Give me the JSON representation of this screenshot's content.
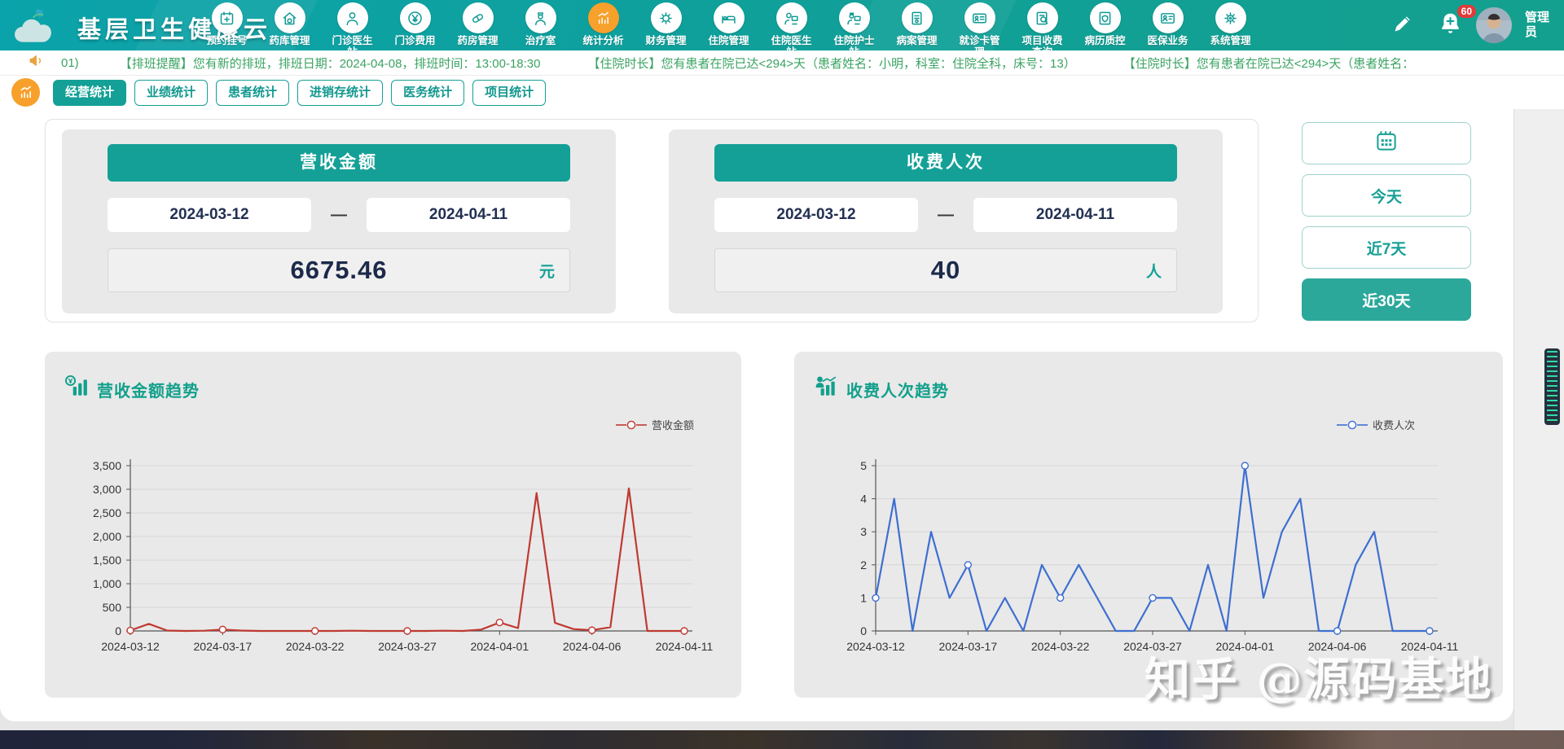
{
  "navbar": {
    "title": "基层卫生健康云",
    "items": [
      {
        "label": "预约挂号",
        "icon": "calendar-plus",
        "active": false
      },
      {
        "label": "药库管理",
        "icon": "pharmacy-house",
        "active": false
      },
      {
        "label": "门诊医生站",
        "icon": "doctor",
        "active": false
      },
      {
        "label": "门诊费用",
        "icon": "yen-coin",
        "active": false
      },
      {
        "label": "药房管理",
        "icon": "capsule",
        "active": false
      },
      {
        "label": "治疗室",
        "icon": "nurse",
        "active": false
      },
      {
        "label": "统计分析",
        "icon": "chart-bars",
        "active": true
      },
      {
        "label": "财务管理",
        "icon": "gear-coin",
        "active": false
      },
      {
        "label": "住院管理",
        "icon": "bed",
        "active": false
      },
      {
        "label": "住院医生站",
        "icon": "doctor-desk",
        "active": false
      },
      {
        "label": "住院护士站",
        "icon": "nurse-desk",
        "active": false
      },
      {
        "label": "病案管理",
        "icon": "document",
        "active": false
      },
      {
        "label": "就诊卡管理",
        "icon": "id-card",
        "active": false
      },
      {
        "label": "项目收费查询",
        "icon": "doc-search",
        "active": false
      },
      {
        "label": "病历质控",
        "icon": "doc-shield",
        "active": false
      },
      {
        "label": "医保业务",
        "icon": "insurance-card",
        "active": false
      },
      {
        "label": "系统管理",
        "icon": "gear",
        "active": false
      }
    ],
    "notification_count": "60",
    "user_name": "管理员"
  },
  "ticker": {
    "index": "01)",
    "messages": [
      "【排班提醒】您有新的排班，排班日期：2024-04-08，排班时间：13:00-18:30",
      "【住院时长】您有患者在院已达<294>天（患者姓名：小明，科室：住院全科，床号：13）",
      "【住院时长】您有患者在院已达<294>天（患者姓名："
    ]
  },
  "tabs": [
    {
      "label": "经营统计",
      "active": true
    },
    {
      "label": "业绩统计",
      "active": false
    },
    {
      "label": "患者统计",
      "active": false
    },
    {
      "label": "进销存统计",
      "active": false
    },
    {
      "label": "医务统计",
      "active": false
    },
    {
      "label": "项目统计",
      "active": false
    }
  ],
  "stat_cards": [
    {
      "title": "营收金额",
      "date_from": "2024-03-12",
      "date_sep": "—",
      "date_to": "2024-04-11",
      "value": "6675.46",
      "unit": "元"
    },
    {
      "title": "收费人次",
      "date_from": "2024-03-12",
      "date_sep": "—",
      "date_to": "2024-04-11",
      "value": "40",
      "unit": "人"
    }
  ],
  "date_filters": {
    "today": "今天",
    "last7": "近7天",
    "last30": "近30天",
    "active": "近30天"
  },
  "watermark": "知乎 @源码基地",
  "colors": {
    "primary_teal": "#14a096",
    "active_orange": "#f7a02b",
    "ticker_green": "#3aa362",
    "revenue_red": "#bf3a32",
    "visits_blue": "#3e6fd1",
    "value_navy": "#1c2a4a"
  },
  "chart_data": [
    {
      "type": "line",
      "title": "营收金额趋势",
      "legend_position": "top-right",
      "grid": true,
      "ylim": [
        0,
        3500
      ],
      "y_ticks": [
        0,
        500,
        1000,
        1500,
        2000,
        2500,
        3000,
        3500
      ],
      "y_tick_labels": [
        "0",
        "500",
        "1,000",
        "1,500",
        "2,000",
        "2,500",
        "3,000",
        "3,500"
      ],
      "x": [
        "2024-03-12",
        "2024-03-13",
        "2024-03-14",
        "2024-03-15",
        "2024-03-16",
        "2024-03-17",
        "2024-03-18",
        "2024-03-19",
        "2024-03-20",
        "2024-03-21",
        "2024-03-22",
        "2024-03-23",
        "2024-03-24",
        "2024-03-25",
        "2024-03-26",
        "2024-03-27",
        "2024-03-28",
        "2024-03-29",
        "2024-03-30",
        "2024-03-31",
        "2024-04-01",
        "2024-04-02",
        "2024-04-03",
        "2024-04-04",
        "2024-04-05",
        "2024-04-06",
        "2024-04-07",
        "2024-04-08",
        "2024-04-09",
        "2024-04-10",
        "2024-04-11"
      ],
      "x_tick_labels": [
        "2024-03-12",
        "2024-03-17",
        "2024-03-22",
        "2024-03-27",
        "2024-04-01",
        "2024-04-06",
        "2024-04-11"
      ],
      "series": [
        {
          "name": "营收金额",
          "color": "#bf3a32",
          "values": [
            10,
            150,
            8,
            0,
            5,
            30,
            8,
            0,
            0,
            0,
            0,
            0,
            5,
            0,
            0,
            0,
            0,
            5,
            0,
            30,
            180,
            60,
            2920,
            170,
            40,
            15,
            80,
            3020,
            0,
            0,
            0
          ]
        }
      ]
    },
    {
      "type": "line",
      "title": "收费人次趋势",
      "legend_position": "top-right",
      "grid": true,
      "ylim": [
        0,
        5
      ],
      "y_ticks": [
        0,
        1,
        2,
        3,
        4,
        5
      ],
      "y_tick_labels": [
        "0",
        "1",
        "2",
        "3",
        "4",
        "5"
      ],
      "x": [
        "2024-03-12",
        "2024-03-13",
        "2024-03-14",
        "2024-03-15",
        "2024-03-16",
        "2024-03-17",
        "2024-03-18",
        "2024-03-19",
        "2024-03-20",
        "2024-03-21",
        "2024-03-22",
        "2024-03-23",
        "2024-03-24",
        "2024-03-25",
        "2024-03-26",
        "2024-03-27",
        "2024-03-28",
        "2024-03-29",
        "2024-03-30",
        "2024-03-31",
        "2024-04-01",
        "2024-04-02",
        "2024-04-03",
        "2024-04-04",
        "2024-04-05",
        "2024-04-06",
        "2024-04-07",
        "2024-04-08",
        "2024-04-09",
        "2024-04-10",
        "2024-04-11"
      ],
      "x_tick_labels": [
        "2024-03-12",
        "2024-03-17",
        "2024-03-22",
        "2024-03-27",
        "2024-04-01",
        "2024-04-06",
        "2024-04-11"
      ],
      "series": [
        {
          "name": "收费人次",
          "color": "#3e6fd1",
          "values": [
            1,
            4,
            0,
            3,
            1,
            2,
            0,
            1,
            0,
            2,
            1,
            2,
            1,
            0,
            0,
            1,
            1,
            0,
            2,
            0,
            5,
            1,
            3,
            4,
            0,
            0,
            2,
            3,
            0,
            0,
            0
          ]
        }
      ]
    }
  ]
}
